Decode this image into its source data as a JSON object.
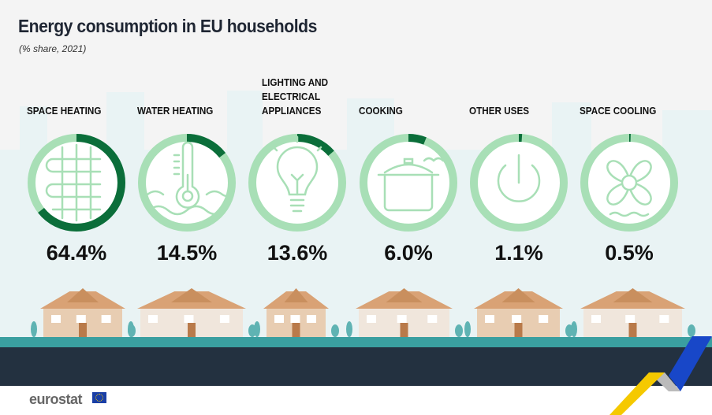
{
  "title": "Energy consumption in EU households",
  "subtitle": "(% share, 2021)",
  "brand": "eurostat",
  "colors": {
    "share": "#0b6e3a",
    "remainder": "#a8dfb6",
    "ground": "#3a9fa0",
    "band": "#233140",
    "house": "#d9a275"
  },
  "chart_data": {
    "type": "pie",
    "title": "Energy consumption in EU households",
    "subtitle": "(% share, 2021)",
    "categories": [
      "SPACE HEATING",
      "WATER HEATING",
      "LIGHTING AND ELECTRICAL APPLIANCES",
      "COOKING",
      "OTHER USES",
      "SPACE COOLING"
    ],
    "values": [
      64.4,
      14.5,
      13.6,
      6.0,
      1.1,
      0.5
    ],
    "labels": [
      "64.4%",
      "14.5%",
      "13.6%",
      "6.0%",
      "1.1%",
      "0.5%"
    ],
    "icons": [
      "radiator-icon",
      "thermometer-icon",
      "lightbulb-icon",
      "cooking-pot-icon",
      "power-icon",
      "fan-icon"
    ]
  }
}
